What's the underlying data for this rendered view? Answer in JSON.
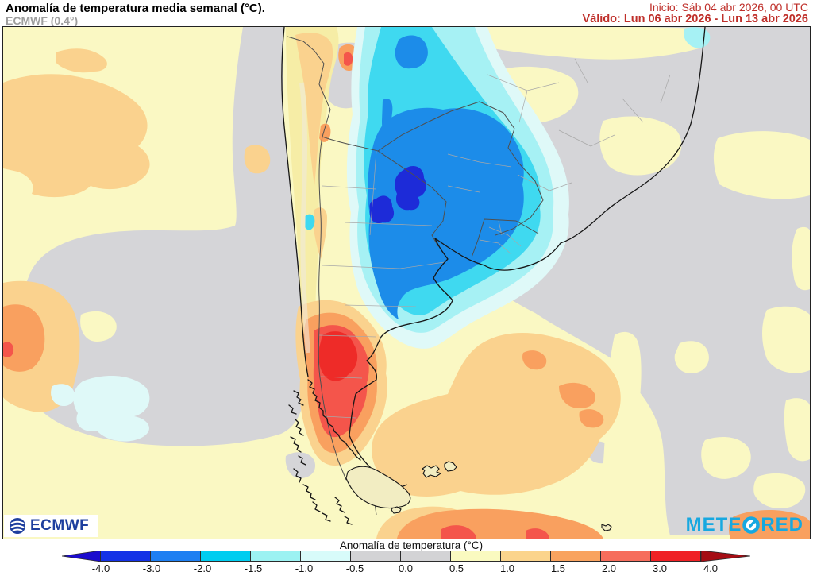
{
  "header": {
    "title": "Anomalía de temperatura media semanal (°C).",
    "subtitle": "ECMWF (0.4°)",
    "init_label": "Inicio: Sáb 04 abr 2026, 00 UTC",
    "valid_label": "Válido: Lun 06 abr 2026 - Lun 13 abr 2026"
  },
  "map": {
    "logos": {
      "ecmwf": "ECMWF",
      "meteored_left": "METE",
      "meteored_right": "RED"
    },
    "palette": {
      "date_red": "#bf2f2a",
      "neutral_gray": "#D5D5D8",
      "pale_yellow": "#FAF8C3",
      "andes_tan": "#F6EDA6",
      "light_orange": "#FAD28E",
      "orange": "#F9A05F",
      "salmon_red": "#F4554B",
      "red": "#EE2B28",
      "dark_red": "#E91A22",
      "pale_cyan": "#DFF9F8",
      "light_cyan": "#A6F1F4",
      "cyan": "#3FD9F0",
      "medium_blue": "#1C8CE9",
      "dark_blue": "#1D2BD8",
      "coastline": "#161616",
      "country_border": "#4F4F4F",
      "province_border": "#A8A8A8",
      "ecmwf_blue": "#1E3F9E",
      "meteored_cyan": "#17A8E0"
    }
  },
  "colorbar": {
    "label": "Anomalía de temperatura (°C)",
    "ticks": [
      "-4.0",
      "-3.0",
      "-2.0",
      "-1.5",
      "-1.0",
      "-0.5",
      "0.0",
      "0.5",
      "1.0",
      "1.5",
      "2.0",
      "3.0",
      "4.0"
    ],
    "segment_colors": [
      "#1432E6",
      "#1E7FF2",
      "#00CDF0",
      "#9CF2F2",
      "#D8FBFA",
      "#D3D3D5",
      "#D3D3D5",
      "#FAFAC0",
      "#FBD48C",
      "#F9A35F",
      "#F66D5C",
      "#EF2125"
    ],
    "left_arrow_color": "#1B0BCE",
    "right_arrow_color": "#A50D14"
  }
}
